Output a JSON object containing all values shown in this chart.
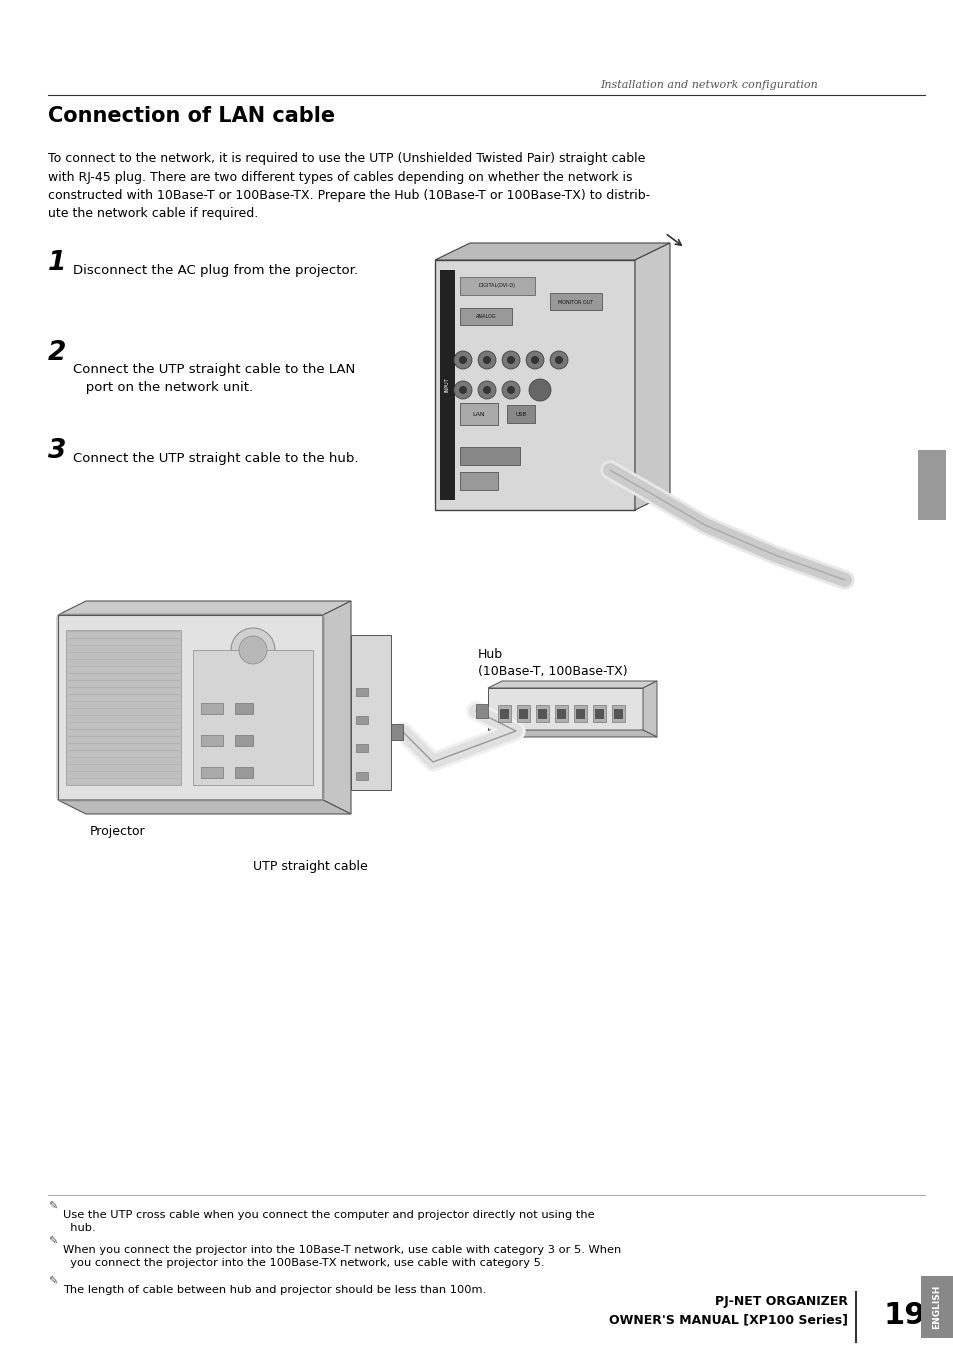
{
  "bg_color": "#ffffff",
  "header_italic_text": "Installation and network configuration",
  "title": "Connection of LAN cable",
  "body_text": "To connect to the network, it is required to use the UTP (Unshielded Twisted Pair) straight cable\nwith RJ-45 plug. There are two different types of cables depending on whether the network is\nconstructed with 10Base-T or 100Base-TX. Prepare the Hub (10Base-T or 100Base-TX) to distrib-\nute the network cable if required.",
  "step1": "1",
  "step1_text": "Disconnect the AC plug from the projector.",
  "step2": "2",
  "step2_text": "Connect the UTP straight cable to the LAN\n   port on the network unit.",
  "step3": "3",
  "step3_text": "Connect the UTP straight cable to the hub.",
  "projector_label": "Projector",
  "hub_label": "Hub\n(10Base-T, 100Base-TX)",
  "cable_label": "UTP straight cable",
  "note1": "Use the UTP cross cable when you connect the computer and projector directly not using the\n  hub.",
  "note2": "When you connect the projector into the 10Base-T network, use cable with category 3 or 5. When\n  you connect the projector into the 100Base-TX network, use cable with category 5.",
  "note3": "The length of cable between hub and projector should be less than 100m.",
  "footer_line1": "PJ-NET ORGANIZER",
  "footer_line2": "OWNER'S MANUAL [XP100 Series]",
  "footer_page": "19",
  "english_tab": "ENGLISH"
}
